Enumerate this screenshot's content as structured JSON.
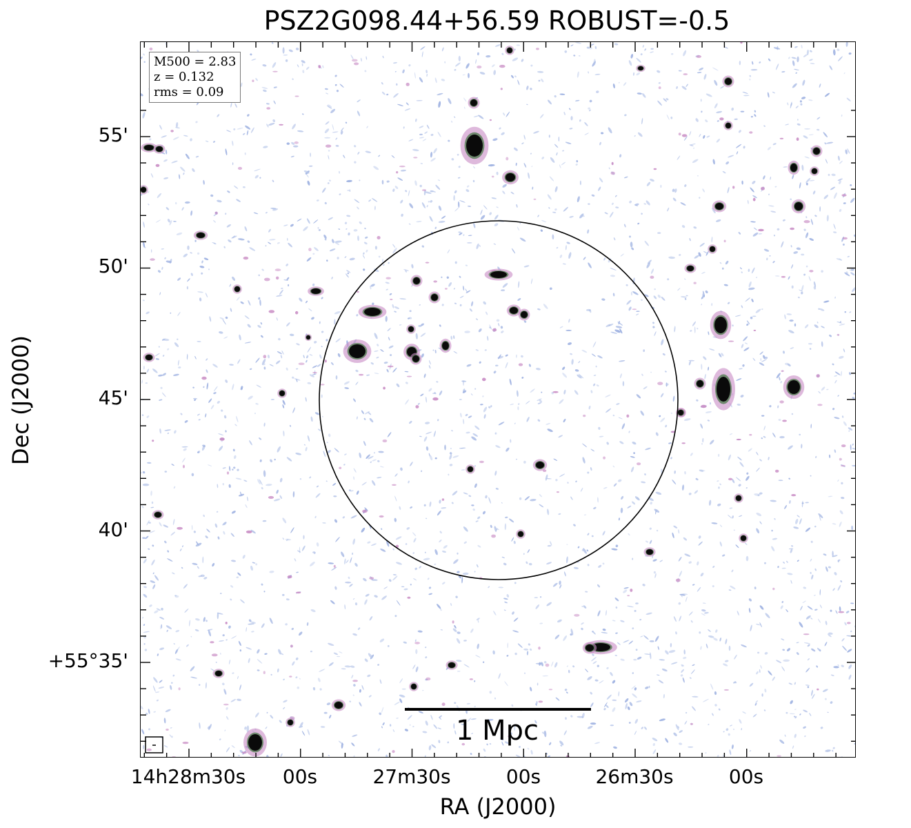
{
  "title": "PSZ2G098.44+56.59 ROBUST=-0.5",
  "info_box": {
    "m500": "M500 = 2.83",
    "z": "z = 0.132",
    "rms": "rms = 0.09"
  },
  "scale_bar_label": "1 Mpc",
  "axes": {
    "xlabel": "RA (J2000)",
    "ylabel": "Dec (J2000)",
    "x_ticks": [
      "14h28m30s",
      "00s",
      "27m30s",
      "00s",
      "26m30s",
      "00s"
    ],
    "y_ticks": [
      "55'",
      "50'",
      "45'",
      "40'",
      "+55°35'"
    ]
  },
  "colors": {
    "noise": "#b9c8ea",
    "noise_alt": "#9aaee0",
    "emission_low": "#c88bc4",
    "emission_mid": "#4a7a4a",
    "emission_high": "#0a0a0a"
  }
}
